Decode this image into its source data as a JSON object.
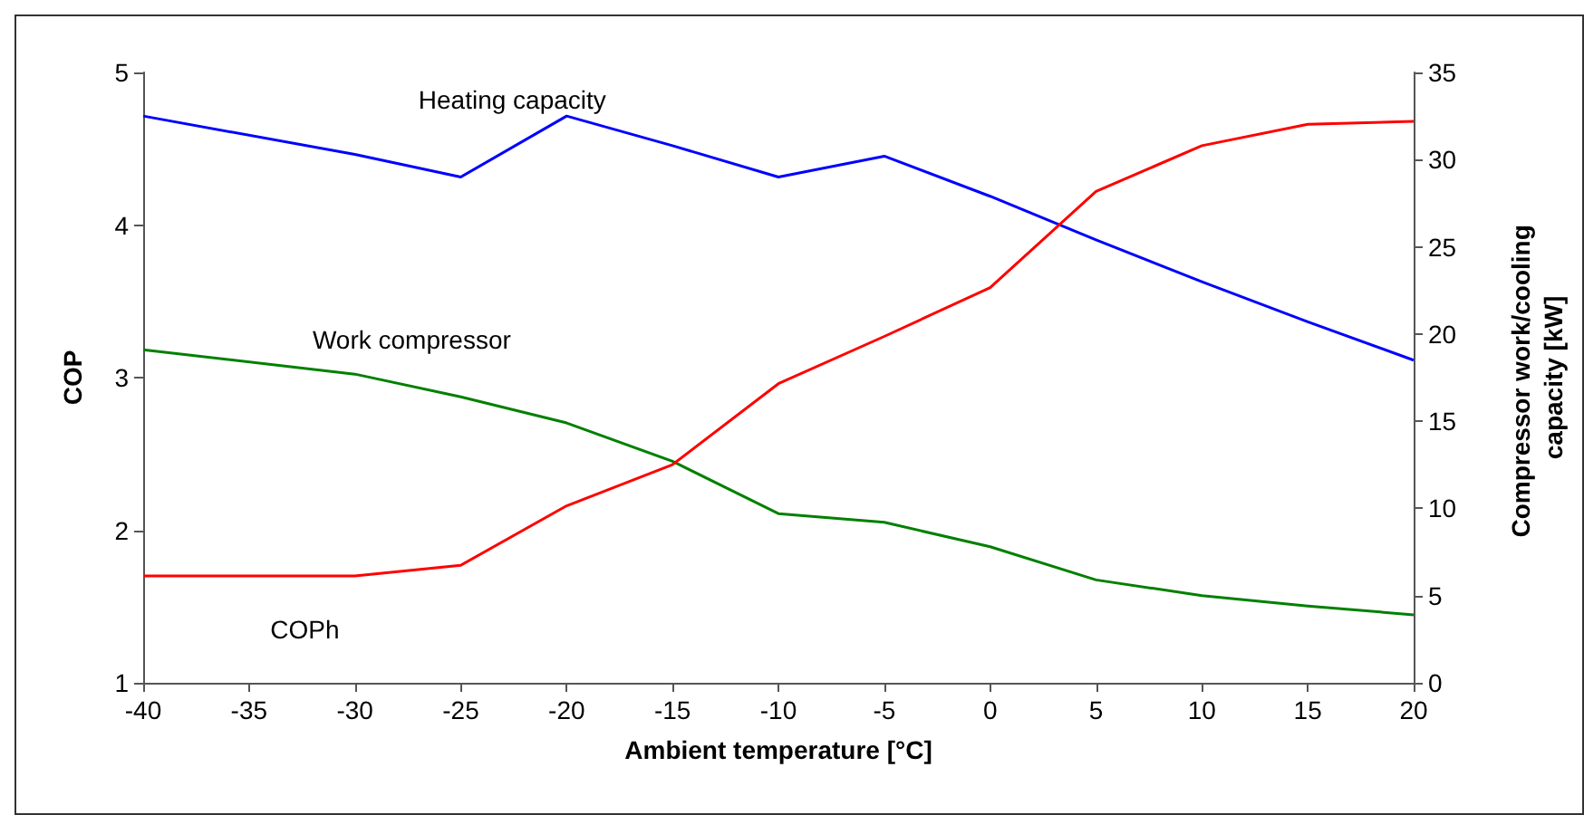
{
  "chart_data": {
    "type": "line",
    "xlabel": "Ambient temperature [°C]",
    "ylabel": "COP",
    "y2label": "Compressor work/cooling capacity [kW]",
    "x": [
      -40,
      -30,
      -25,
      -20,
      -15,
      -10,
      -5,
      0,
      5,
      10,
      15,
      20
    ],
    "xlim": [
      -40,
      20
    ],
    "xticks": [
      -40,
      -35,
      -30,
      -25,
      -20,
      -15,
      -10,
      -5,
      0,
      5,
      10,
      15,
      20
    ],
    "ylim": [
      1,
      5
    ],
    "yticks": [
      1,
      2,
      3,
      4,
      5
    ],
    "y2lim": [
      0,
      35
    ],
    "y2ticks": [
      0,
      5,
      10,
      15,
      20,
      25,
      30,
      35
    ],
    "grid": false,
    "marker": "none",
    "line_style": "solid",
    "series": [
      {
        "name": "Heating capacity",
        "color": "#0000ff",
        "axis": "y2",
        "values": [
          32.5,
          30.3,
          29.0,
          32.5,
          30.8,
          29.0,
          30.2,
          27.9,
          25.4,
          23.0,
          20.7,
          18.5
        ]
      },
      {
        "name": "Work compressor",
        "color": "#008000",
        "axis": "y2",
        "values": [
          19.1,
          17.7,
          16.4,
          14.9,
          12.7,
          9.7,
          9.2,
          7.8,
          5.9,
          5.0,
          4.4,
          3.9
        ]
      },
      {
        "name": "COPh",
        "color": "#ff0000",
        "values": [
          1.7,
          1.7,
          1.77,
          2.16,
          2.43,
          2.96,
          3.27,
          3.59,
          4.22,
          4.52,
          4.66,
          4.68
        ]
      }
    ]
  }
}
